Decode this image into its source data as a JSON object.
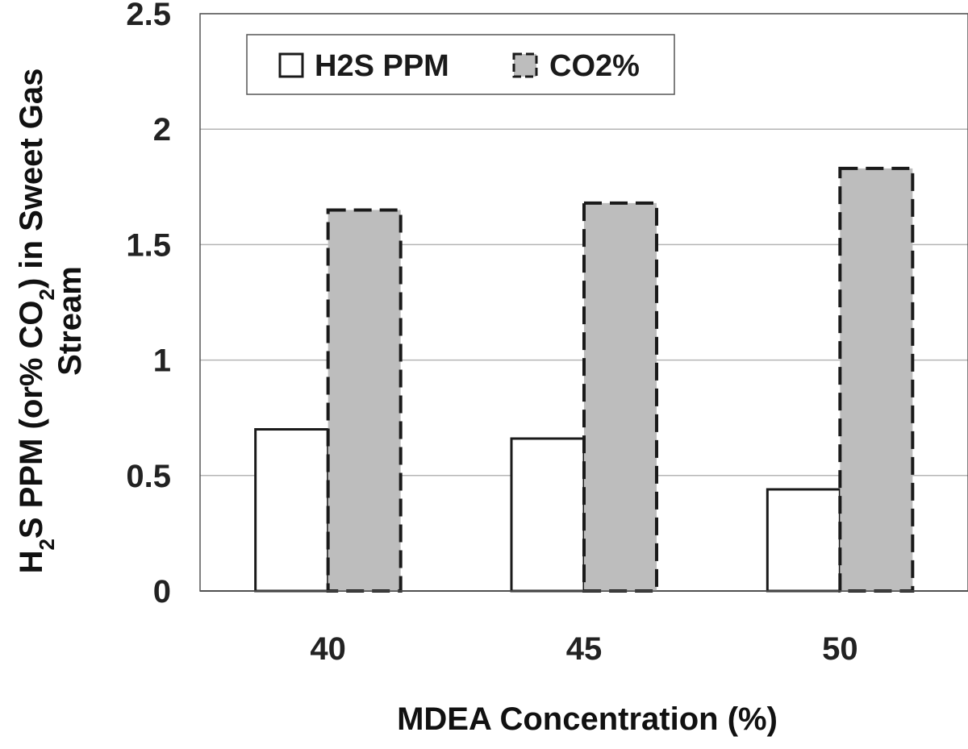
{
  "chart_data": {
    "type": "bar",
    "categories": [
      "40",
      "45",
      "50"
    ],
    "series": [
      {
        "name": "H2S PPM",
        "values": [
          0.7,
          0.66,
          0.44
        ]
      },
      {
        "name": "CO2%",
        "values": [
          1.65,
          1.68,
          1.83
        ]
      }
    ],
    "xlabel": "MDEA Concentration (%)",
    "ylabel": {
      "line1_parts": [
        "H",
        "2",
        "S PPM (or% CO",
        "2",
        ") in Sweet Gas"
      ],
      "line2": "Stream"
    },
    "ylim": [
      0,
      2.5
    ],
    "yticks": [
      "0",
      "0.5",
      "1",
      "1.5",
      "2",
      "2.5"
    ],
    "grid": true,
    "legend_position": "top-left",
    "colors": {
      "H2S PPM": "#ffffff",
      "CO2%": "#bdbdbd",
      "outline": "#1a1a1a",
      "grid": "#b5b5b5"
    }
  }
}
